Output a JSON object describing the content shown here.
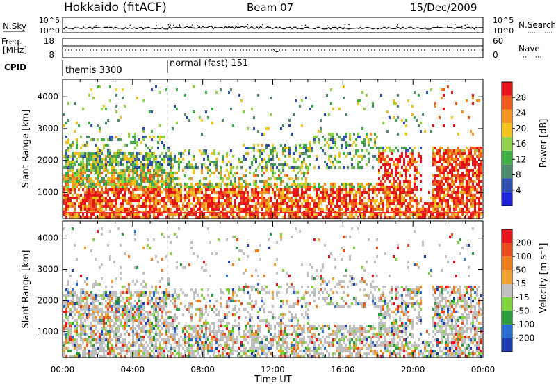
{
  "header": {
    "station": "Hokkaido (fitACF)",
    "beam": "Beam 07",
    "date": "15/Dec/2009"
  },
  "strip": {
    "nsky_label": "N.Sky",
    "nsky_ticks": [
      "10^5",
      "10^0"
    ],
    "nsearch_label": "N.Search",
    "freq_label_line1": "Freq.",
    "freq_label_line2": "[MHz]",
    "freq_ticks": [
      "18",
      "8"
    ],
    "nave_label": "Nave",
    "nave_ticks": [
      "60",
      "0"
    ],
    "cpid_label": "CPID",
    "cpid_segments": [
      {
        "label": "themis 3300",
        "start_hour": 0,
        "end_hour": 6
      },
      {
        "label": "normal (fast) 151",
        "start_hour": 6,
        "end_hour": 24
      }
    ]
  },
  "colors": {
    "power_scale": [
      "#1d24d9",
      "#2f4fb0",
      "#4c8a6a",
      "#3fae45",
      "#8fd24a",
      "#f2c21d",
      "#f5951f",
      "#ef5a1c",
      "#e8141a"
    ],
    "velocity_scale": [
      "#1b3fb0",
      "#2a6fd0",
      "#2e9a3e",
      "#7fd23a",
      "#c0c0c0",
      "#f0a030",
      "#f07d1c",
      "#ea4a1c",
      "#e8141a"
    ],
    "range_gate_line": "#ff3333"
  },
  "chart_data": [
    {
      "type": "heatmap",
      "name": "power",
      "ylabel": "Slant Range [km]",
      "xlabel": "",
      "x_ticks": [
        "00:00",
        "04:00",
        "08:00",
        "12:00",
        "16:00",
        "20:00",
        "00:00"
      ],
      "y_ticks": [
        "1000",
        "2000",
        "3000",
        "4000"
      ],
      "xlim": [
        0,
        24
      ],
      "ylim": [
        180,
        4550
      ],
      "colorbar_label": "Power [dB]",
      "colorbar_ticks": [
        "4",
        "8",
        "12",
        "16",
        "20",
        "24",
        "28"
      ],
      "colorbar_range": [
        0,
        30
      ]
    },
    {
      "type": "heatmap",
      "name": "velocity",
      "ylabel": "Slant Range [km]",
      "xlabel": "Time UT",
      "x_ticks": [
        "00:00",
        "04:00",
        "08:00",
        "12:00",
        "16:00",
        "20:00",
        "00:00"
      ],
      "y_ticks": [
        "1000",
        "2000",
        "3000",
        "4000"
      ],
      "xlim": [
        0,
        24
      ],
      "ylim": [
        180,
        4550
      ],
      "colorbar_label": "Velocity [m s⁻¹]",
      "colorbar_ticks": [
        "200",
        "100",
        "50",
        "15",
        "-15",
        "-50",
        "-100",
        "-200"
      ]
    }
  ]
}
